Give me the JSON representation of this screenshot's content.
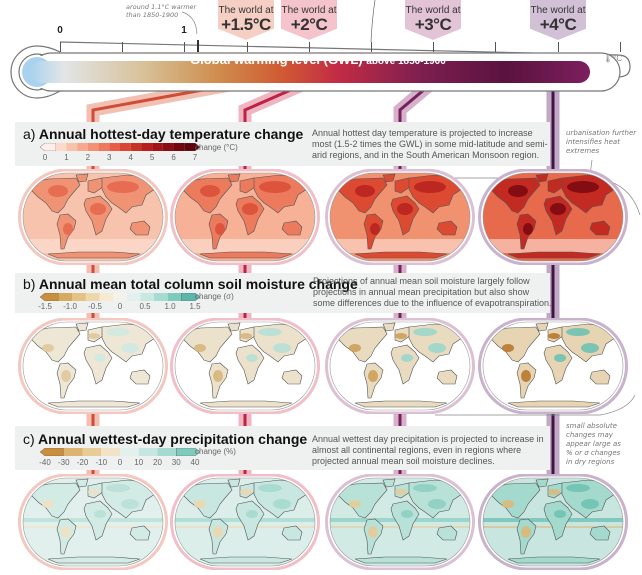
{
  "gwl_bar": {
    "title": "Global warming level (GWL)",
    "subtitle": "above 1850-1900",
    "unit_icon": "thermometer-icon",
    "tick_labels": [
      "0",
      "1"
    ],
    "current_note": "around 1.1°C warmer than 1850-1900",
    "current_value": 1.1
  },
  "levels": [
    {
      "prefix": "The world at",
      "value": "+1.5°C",
      "gwl": 1.5,
      "box_color": "#f6cfc4",
      "band_color": "#f1c0b2",
      "line_color": "#cf4c35"
    },
    {
      "prefix": "The world at",
      "value": "+2°C",
      "gwl": 2,
      "box_color": "#f4c3cb",
      "band_color": "#efb5c0",
      "line_color": "#bd2347"
    },
    {
      "prefix": "The world at",
      "value": "+3°C",
      "gwl": 3,
      "box_color": "#e3c4d6",
      "band_color": "#d6b1c9",
      "line_color": "#74225d"
    },
    {
      "prefix": "The world at",
      "value": "+4°C",
      "gwl": 4,
      "box_color": "#d2c0d6",
      "band_color": "#c0a8c6",
      "line_color": "#3f1640"
    }
  ],
  "panels": [
    {
      "letter": "a)",
      "title": "Annual hottest-day temperature change",
      "description": "Annual hottest day temperature is projected to increase most (1.5-2 times the GWL) in some mid-latitude and semi-arid regions, and in the South American Monsoon region.",
      "unit": "change (°C)",
      "ticks": [
        "0",
        "1",
        "2",
        "3",
        "4",
        "5",
        "6",
        "7"
      ],
      "colors": [
        "#fdf0ea",
        "#fbd9cb",
        "#f9c2ad",
        "#f6a98f",
        "#f39175",
        "#ee775c",
        "#e65e46",
        "#d94534",
        "#c93026",
        "#b71f1e",
        "#a11419",
        "#8a0c14",
        "#730710",
        "#5e040c"
      ]
    },
    {
      "letter": "b)",
      "title": "Annual mean total column soil moisture change",
      "description": "Projections of annual mean soil moisture largely follow projections in annual mean precipitation but also show some differences due to the influence of evapotranspiration.",
      "unit": "change (σ)",
      "ticks": [
        "-1.5",
        "-1.0",
        "-0.5",
        "0",
        "0.5",
        "1.0",
        "1.5"
      ],
      "colors": [
        "#c98f3e",
        "#d7aa62",
        "#e3c286",
        "#eed8ab",
        "#f6ead2",
        "#f5f2ea",
        "#e3f1ee",
        "#c8e8e2",
        "#a6dbd2",
        "#7ecbbe",
        "#5db7a9"
      ]
    },
    {
      "letter": "c)",
      "title": "Annual wettest-day precipitation change",
      "description": "Annual wettest day precipitation is projected to increase in almost all continental regions, even in regions where projected annual mean soil moisture declines.",
      "unit": "change (%)",
      "ticks": [
        "-40",
        "-30",
        "-20",
        "-10",
        "0",
        "10",
        "20",
        "30",
        "40"
      ],
      "colors": [
        "#c98f3e",
        "#dcb36f",
        "#e8cc98",
        "#f3e3c6",
        "#e3f1ee",
        "#c6e7e1",
        "#a4dad1",
        "#7ecbbe"
      ]
    }
  ],
  "notes": {
    "urbanisation": "urbanisation further intensifies heat extremes",
    "dry_regions": "small absolute changes may appear large as % or σ changes in dry regions"
  },
  "map_colors": {
    "a": [
      {
        "ocean": "#f8c3ad",
        "land": "#f09274",
        "hot": "#e5694f"
      },
      {
        "ocean": "#f6b196",
        "land": "#ec7a5c",
        "hot": "#dc5039"
      },
      {
        "ocean": "#f09170",
        "land": "#dc4a32",
        "hot": "#b82420"
      },
      {
        "ocean": "#e86a4c",
        "land": "#c22a22",
        "hot": "#7e0a12"
      }
    ],
    "b": [
      {
        "ocean": "#ffffff",
        "land": "#eee7d6",
        "dry": "#e0c89c",
        "wet": "#cfe9e3"
      },
      {
        "ocean": "#ffffff",
        "land": "#ece2cc",
        "dry": "#d9b67c",
        "wet": "#b9e0d8"
      },
      {
        "ocean": "#ffffff",
        "land": "#e9dbc0",
        "dry": "#cf9f58",
        "wet": "#9cd6cb"
      },
      {
        "ocean": "#ffffff",
        "land": "#e6d4b3",
        "dry": "#b9782e",
        "wet": "#6fc2b3"
      }
    ],
    "c": [
      {
        "ocean": "#e1f0ec",
        "land": "#d3ebe5",
        "dry": "#f0e2c4",
        "wet": "#b8e0d7"
      },
      {
        "ocean": "#dbeee9",
        "land": "#c8e7e0",
        "dry": "#ecd8b0",
        "wet": "#a6dad0"
      },
      {
        "ocean": "#d2eae4",
        "land": "#b8e1d8",
        "dry": "#e6cc98",
        "wet": "#8fd0c4"
      },
      {
        "ocean": "#c8e6df",
        "land": "#a4d9ce",
        "dry": "#ddb97a",
        "wet": "#6fc2b3"
      }
    ]
  }
}
